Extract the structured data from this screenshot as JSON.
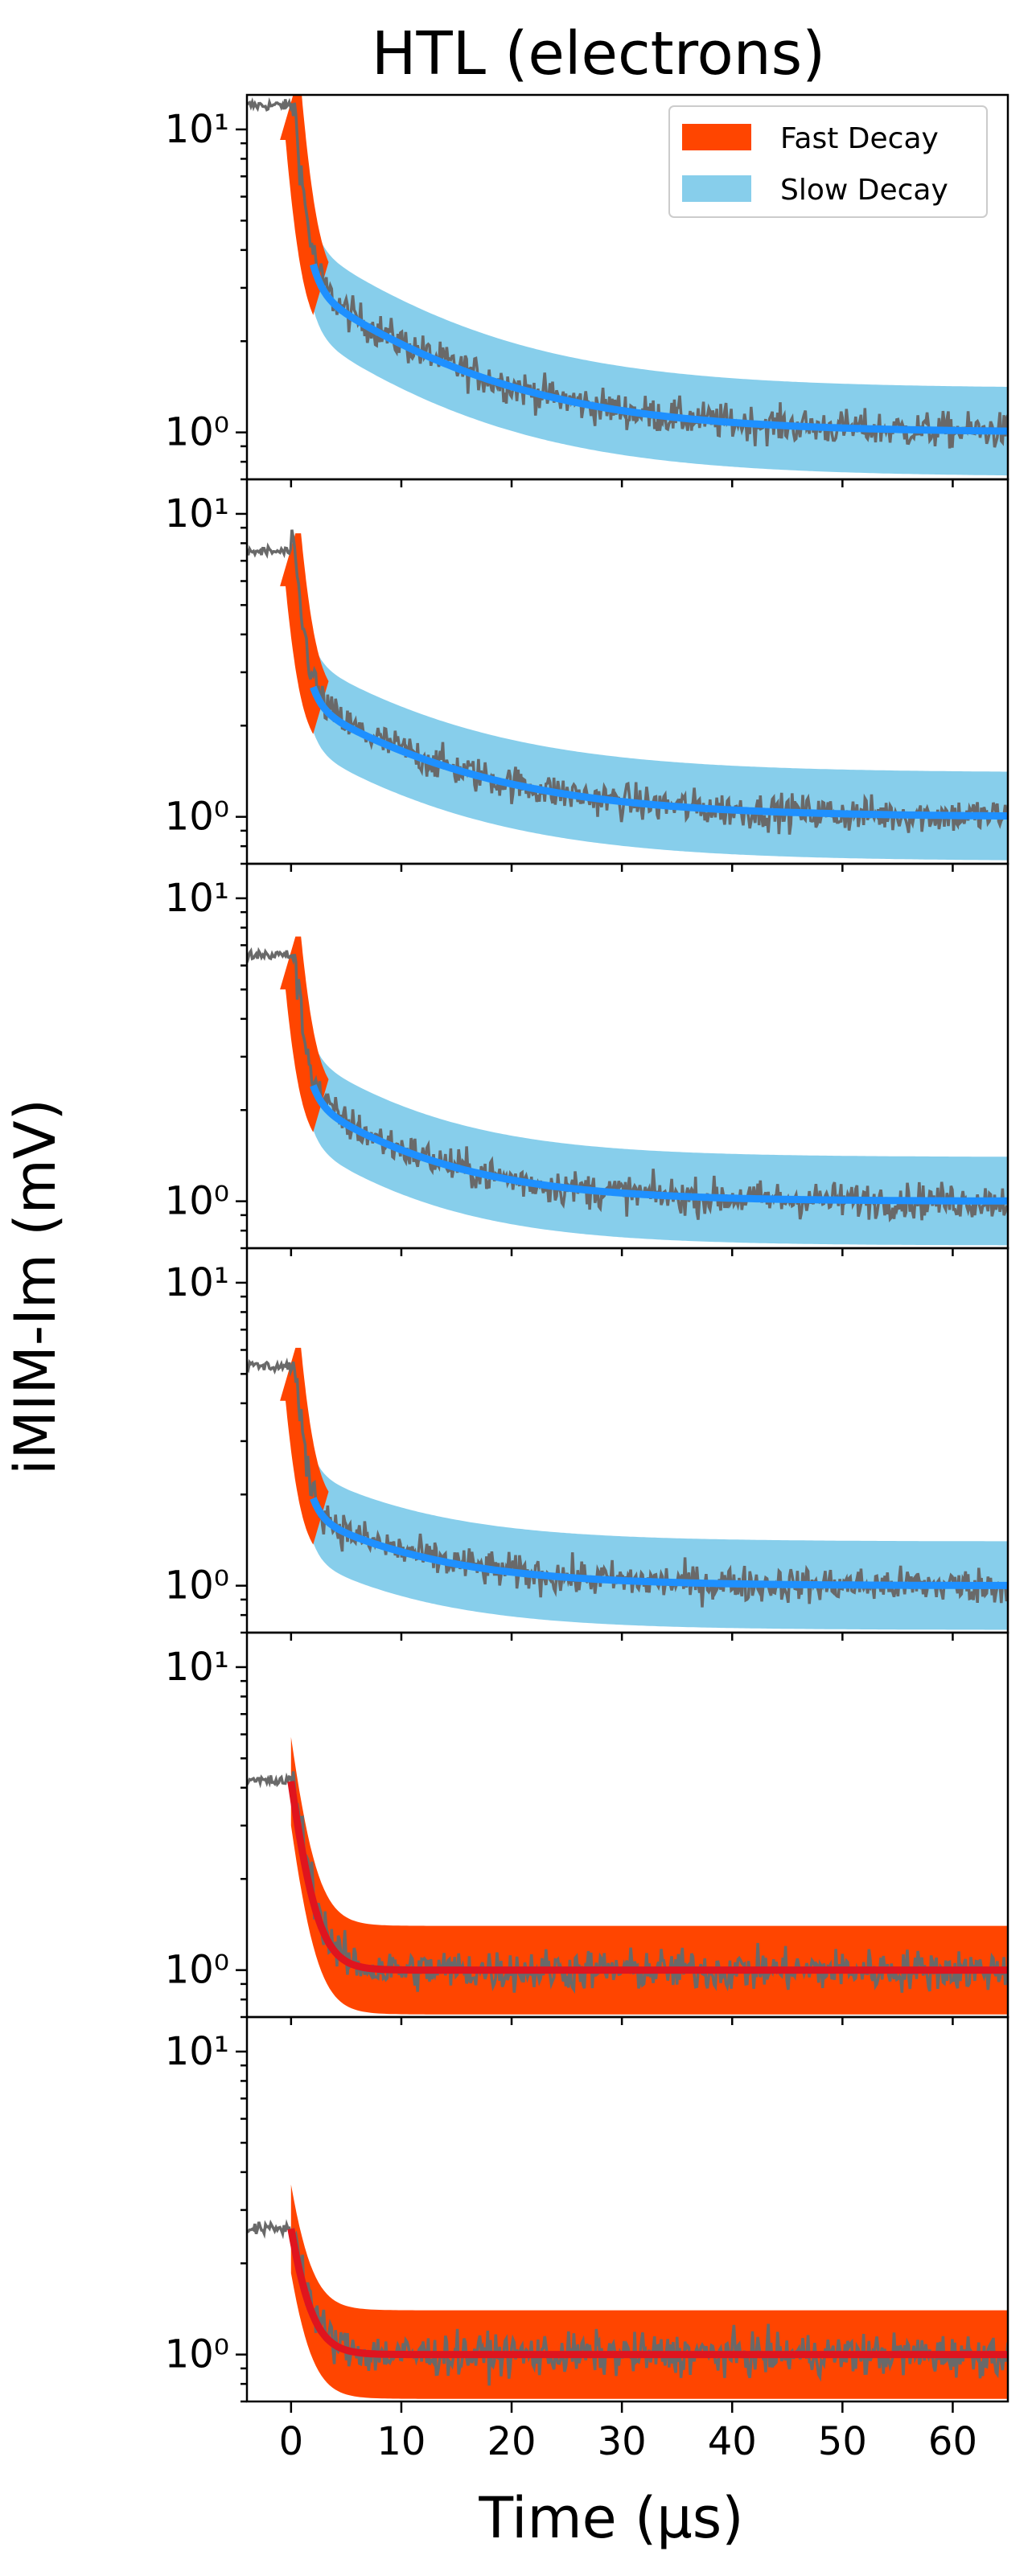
{
  "chart_data": {
    "type": "line",
    "title": "HTL (electrons)",
    "xlabel": "Time (µs)",
    "ylabel": "iMIM-Im (mV)",
    "yscale": "log",
    "xlim": [
      -4,
      65
    ],
    "ylim": [
      0.7,
      13
    ],
    "x_ticks": [
      0,
      10,
      20,
      30,
      40,
      50,
      60
    ],
    "x_tick_labels": [
      "0",
      "10",
      "20",
      "30",
      "40",
      "50",
      "60"
    ],
    "y_ticks": [
      1,
      10
    ],
    "y_tick_labels": [
      "10⁰",
      "10¹"
    ],
    "legend": {
      "placement": "top-right",
      "entries": [
        {
          "label": "Fast Decay",
          "color": "#ff4500"
        },
        {
          "label": "Slow Decay",
          "color": "#87ceeb"
        }
      ]
    },
    "colors": {
      "data": "#696969",
      "fast_fit": "#ff4500",
      "slow_fit": "#1e90ff",
      "fast_line": "#e0141e",
      "slow_band": "#87ceeb"
    },
    "panels": [
      {
        "pre_level": 12.0,
        "fast_tau": 0.8,
        "slow_tau": 12,
        "slow_amp": 2.2,
        "fast_end": 2,
        "baseline": 1.0,
        "noise": 0.13,
        "band": 1.4,
        "has_slow": true
      },
      {
        "pre_level": 7.5,
        "fast_tau": 0.8,
        "slow_tau": 12,
        "slow_amp": 1.5,
        "fast_end": 2,
        "baseline": 1.0,
        "noise": 0.13,
        "band": 1.4,
        "has_slow": true
      },
      {
        "pre_level": 6.5,
        "fast_tau": 0.8,
        "slow_tau": 10,
        "slow_amp": 1.3,
        "fast_end": 2,
        "baseline": 1.0,
        "noise": 0.13,
        "band": 1.4,
        "has_slow": true
      },
      {
        "pre_level": 5.3,
        "fast_tau": 0.8,
        "slow_tau": 10,
        "slow_amp": 0.8,
        "fast_end": 2,
        "baseline": 1.0,
        "noise": 0.13,
        "band": 1.4,
        "has_slow": true
      },
      {
        "pre_level": 4.2,
        "fast_tau": 1.3,
        "slow_tau": 0,
        "slow_amp": 0,
        "fast_end": 8,
        "baseline": 1.0,
        "noise": 0.15,
        "band": 1.4,
        "has_slow": false
      },
      {
        "pre_level": 2.6,
        "fast_tau": 1.3,
        "slow_tau": 0,
        "slow_amp": 0,
        "fast_end": 8,
        "baseline": 1.0,
        "noise": 0.15,
        "band": 1.4,
        "has_slow": false
      }
    ]
  }
}
